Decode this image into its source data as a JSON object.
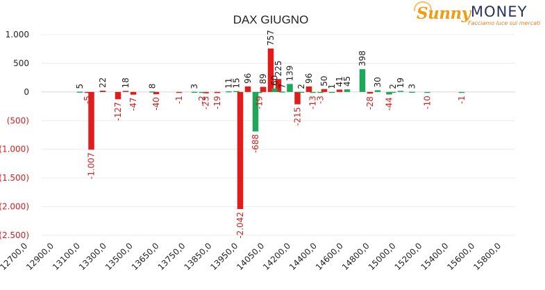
{
  "logo": {
    "brand_part1": "Sunny",
    "brand_part2": "MONEY",
    "tagline": "Facciamo luce sui mercati"
  },
  "colors": {
    "positive": "#e31b1b",
    "negative": "#1ea65a",
    "negative_label": "#d61d1d",
    "grid": "#ececec",
    "text": "#333333"
  },
  "chart_data": {
    "type": "bar",
    "title": "DAX GIUGNO",
    "xlabel": "",
    "ylabel": "",
    "ylim": [
      -2500,
      1000
    ],
    "yticks": [
      1000,
      500,
      0,
      -500,
      -1000,
      -1500,
      -2000,
      -2500
    ],
    "ytick_labels": [
      "1.000",
      "500",
      "0",
      "(500)",
      "(1.000)",
      "(1.500)",
      "(2.000)",
      "(2.500)"
    ],
    "xtick_labels": [
      "12700,0",
      "12900,0",
      "13100,0",
      "13300,0",
      "13500,0",
      "13650,0",
      "13750,0",
      "13850,0",
      "13950,0",
      "14050,0",
      "14200,0",
      "14400,0",
      "14600,0",
      "14800,0",
      "15000,0",
      "15200,0",
      "15400,0",
      "15600,0",
      "15800,0"
    ],
    "grid": true,
    "legend": "none",
    "series": [
      {
        "color": "#e31b1b",
        "points": [
          {
            "x": 13000,
            "y": -5,
            "label": "-5"
          },
          {
            "x": 13025,
            "y": -1007,
            "label": "-1.007"
          },
          {
            "x": 13100,
            "y": 22,
            "label": "22"
          },
          {
            "x": 13200,
            "y": -127,
            "label": "-127"
          },
          {
            "x": 13250,
            "y": 18,
            "label": "18"
          },
          {
            "x": 13300,
            "y": -47,
            "label": "-47"
          },
          {
            "x": 13450,
            "y": -40,
            "label": "-40"
          },
          {
            "x": 13600,
            "y": -1,
            "label": "-1"
          },
          {
            "x": 13775,
            "y": -23,
            "label": "-23"
          },
          {
            "x": 13850,
            "y": -19,
            "label": "-19"
          },
          {
            "x": 14000,
            "y": -2042,
            "label": "-2.042"
          },
          {
            "x": 14050,
            "y": 96,
            "label": "96"
          },
          {
            "x": 14150,
            "y": 89,
            "label": "89"
          },
          {
            "x": 14200,
            "y": 757,
            "label": "757"
          },
          {
            "x": 14250,
            "y": 225,
            "label": "225"
          },
          {
            "x": 14375,
            "y": -215,
            "label": "-215"
          },
          {
            "x": 14450,
            "y": 96,
            "label": "96"
          },
          {
            "x": 14550,
            "y": 50,
            "label": "50"
          },
          {
            "x": 14650,
            "y": 41,
            "label": "41"
          },
          {
            "x": 14850,
            "y": -28,
            "label": "-28"
          }
        ]
      },
      {
        "color": "#1ea65a",
        "points": [
          {
            "x": 12950,
            "y": 5,
            "label": "5"
          },
          {
            "x": 13425,
            "y": 8,
            "label": "8"
          },
          {
            "x": 13700,
            "y": 3,
            "label": "3"
          },
          {
            "x": 13750,
            "y": -2,
            "label": "-2"
          },
          {
            "x": 13925,
            "y": 11,
            "label": "11"
          },
          {
            "x": 13975,
            "y": 15,
            "label": "15"
          },
          {
            "x": 14100,
            "y": -688,
            "label": "-688"
          },
          {
            "x": 14125,
            "y": -19,
            "label": "-19"
          },
          {
            "x": 14225,
            "y": 60,
            "label": "60"
          },
          {
            "x": 14275,
            "y": 7,
            "label": "7"
          },
          {
            "x": 14325,
            "y": 139,
            "label": "139"
          },
          {
            "x": 14400,
            "y": 2,
            "label": "2"
          },
          {
            "x": 14475,
            "y": -13,
            "label": "-13"
          },
          {
            "x": 14525,
            "y": -3,
            "label": "-3"
          },
          {
            "x": 14600,
            "y": 1,
            "label": "1"
          },
          {
            "x": 14700,
            "y": 45,
            "label": "45"
          },
          {
            "x": 14800,
            "y": 398,
            "label": "398"
          },
          {
            "x": 14900,
            "y": 30,
            "label": "30"
          },
          {
            "x": 14975,
            "y": -44,
            "label": "-44"
          },
          {
            "x": 15000,
            "y": 2,
            "label": "2"
          },
          {
            "x": 15050,
            "y": 19,
            "label": "19"
          },
          {
            "x": 15125,
            "y": 3,
            "label": "3"
          },
          {
            "x": 15225,
            "y": -10,
            "label": "-10"
          },
          {
            "x": 15450,
            "y": -1,
            "label": "-1"
          }
        ]
      }
    ]
  }
}
